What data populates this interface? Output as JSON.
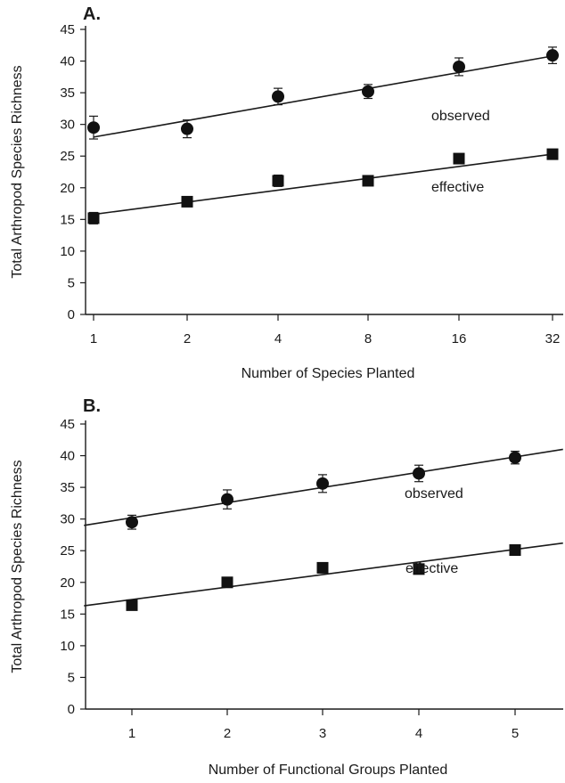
{
  "chart_data": [
    {
      "type": "scatter",
      "panel": "A.",
      "title": "",
      "xlabel": "Number of Species Planted",
      "ylabel": "Total Arthropod Species Richness",
      "x_scale": "log2",
      "categories": [
        "1",
        "2",
        "4",
        "8",
        "16",
        "32"
      ],
      "x": [
        1,
        2,
        4,
        8,
        16,
        32
      ],
      "ylim": [
        0,
        45
      ],
      "yticks": [
        "0",
        "5",
        "10",
        "15",
        "20",
        "25",
        "30",
        "35",
        "40",
        "45"
      ],
      "grid": false,
      "series": [
        {
          "name": "observed",
          "marker": "circle",
          "values": [
            29.5,
            29.3,
            34.4,
            35.2,
            39.1,
            40.9
          ],
          "error": [
            1.8,
            1.4,
            1.3,
            1.1,
            1.4,
            1.3
          ],
          "fit": {
            "x": [
              1,
              32
            ],
            "y": [
              28.0,
              40.8
            ]
          }
        },
        {
          "name": "effective",
          "marker": "square",
          "values": [
            15.2,
            17.8,
            21.1,
            21.1,
            24.6,
            25.3
          ],
          "error": [
            0.9,
            0.6,
            0.9,
            0.5,
            0.5,
            0.7
          ],
          "fit": {
            "x": [
              1,
              32
            ],
            "y": [
              15.8,
              25.3
            ]
          }
        }
      ]
    },
    {
      "type": "scatter",
      "panel": "B.",
      "title": "",
      "xlabel": "Number of Functional Groups Planted",
      "ylabel": "Total Arthropod Species Richness",
      "categories": [
        "1",
        "2",
        "3",
        "4",
        "5"
      ],
      "x": [
        1,
        2,
        3,
        4,
        5
      ],
      "xlim": [
        0.5,
        5.5
      ],
      "ylim": [
        0,
        45
      ],
      "yticks": [
        "0",
        "5",
        "10",
        "15",
        "20",
        "25",
        "30",
        "35",
        "40",
        "45"
      ],
      "grid": false,
      "series": [
        {
          "name": "observed",
          "marker": "circle",
          "values": [
            29.5,
            33.1,
            35.6,
            37.2,
            39.7
          ],
          "error": [
            1.1,
            1.5,
            1.4,
            1.3,
            1.0
          ],
          "fit": {
            "x": [
              0.5,
              5.5
            ],
            "y": [
              29.0,
              41.0
            ]
          }
        },
        {
          "name": "effective",
          "marker": "square",
          "values": [
            16.4,
            20.0,
            22.3,
            22.1,
            25.1
          ],
          "error": [
            0.4,
            0.6,
            0.6,
            0.5,
            0.4
          ],
          "fit": {
            "x": [
              0.5,
              5.5
            ],
            "y": [
              16.3,
              26.2
            ]
          }
        }
      ]
    }
  ]
}
